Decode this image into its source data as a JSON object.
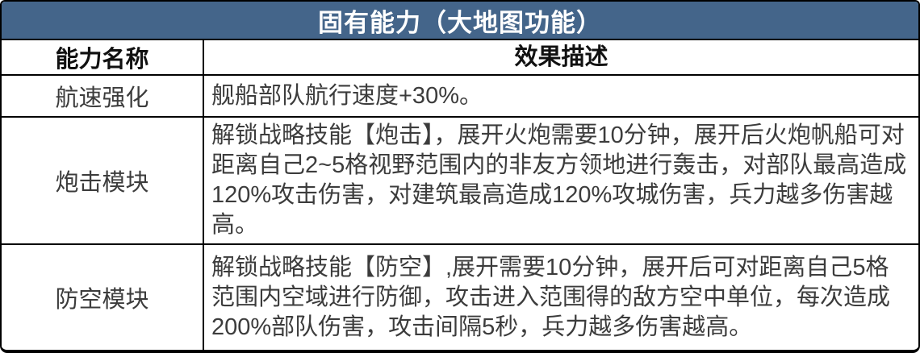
{
  "table": {
    "title": "固有能力（大地图功能）",
    "columns": {
      "name": "能力名称",
      "description": "效果描述"
    },
    "rows": [
      {
        "name": "航速强化",
        "description": "舰船部队航行速度+30%。"
      },
      {
        "name": "炮击模块",
        "description": "解锁战略技能【炮击】，展开火炮需要10分钟，展开后火炮帆船可对距离自己2~5格视野范围内的非友方领地进行轰击，对部队最高造成120%攻击伤害，对建筑最高造成120%攻城伤害，兵力越多伤害越高。"
      },
      {
        "name": "防空模块",
        "description": "解锁战略技能【防空】,展开需要10分钟，展开后可对距离自己5格范围内空域进行防御，攻击进入范围得的敌方空中单位，每次造成200%部队伤害，攻击间隔5秒，兵力越多伤害越高。"
      }
    ],
    "colors": {
      "header_bg": "#44658A",
      "header_text": "#FFFFFF",
      "border": "#000000",
      "body_text": "#3C3C3C",
      "col_header_text": "#111111",
      "cell_bg": "#FFFFFF"
    }
  }
}
